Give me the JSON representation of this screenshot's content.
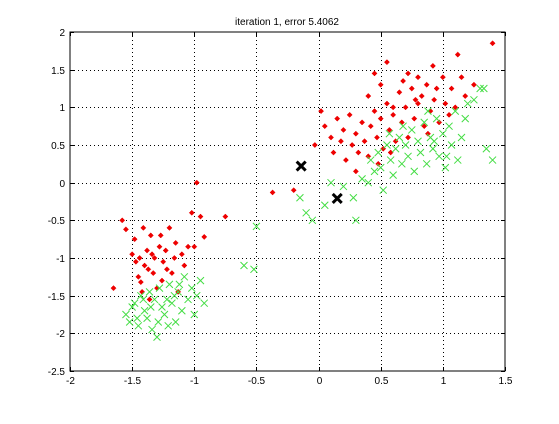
{
  "chart_data": {
    "type": "scatter",
    "title": "iteration 1, error 5.4062",
    "xlabel": "",
    "ylabel": "",
    "xlim": [
      -2,
      1.5
    ],
    "ylim": [
      -2.5,
      2
    ],
    "xticks": [
      -2,
      -1.5,
      -1,
      -0.5,
      0,
      0.5,
      1,
      1.5
    ],
    "xtick_labels": [
      "-2",
      "-1.5",
      "-1",
      "-0.5",
      "0",
      "0.5",
      "1",
      "1.5"
    ],
    "yticks": [
      -2.5,
      -2,
      -1.5,
      -1,
      -0.5,
      0,
      0.5,
      1,
      1.5,
      2
    ],
    "ytick_labels": [
      "-2.5",
      "-2",
      "-1.5",
      "-1",
      "-0.5",
      "0",
      "0.5",
      "1",
      "1.5",
      "2"
    ],
    "grid": true,
    "series": [
      {
        "marker": "diamond",
        "color": "#ee0000",
        "points": [
          [
            -1.65,
            -1.4
          ],
          [
            -1.58,
            -0.5
          ],
          [
            -1.55,
            -0.62
          ],
          [
            -1.5,
            -0.95
          ],
          [
            -1.47,
            -1.05
          ],
          [
            -1.45,
            -1.25
          ],
          [
            -1.43,
            -1.32
          ],
          [
            -1.4,
            -1.1
          ],
          [
            -1.38,
            -0.9
          ],
          [
            -1.36,
            -1.55
          ],
          [
            -1.35,
            -0.7
          ],
          [
            -1.33,
            -1.2
          ],
          [
            -1.32,
            -1.0
          ],
          [
            -1.3,
            -1.4
          ],
          [
            -1.28,
            -0.85
          ],
          [
            -1.26,
            -1.3
          ],
          [
            -1.25,
            -1.05
          ],
          [
            -1.22,
            -1.15
          ],
          [
            -1.2,
            -0.6
          ],
          [
            -1.18,
            -1.2
          ],
          [
            -1.15,
            -0.8
          ],
          [
            -1.13,
            -1.45
          ],
          [
            -1.1,
            -0.95
          ],
          [
            -1.08,
            -1.1
          ],
          [
            -1.05,
            -0.85
          ],
          [
            -1.02,
            -0.4
          ],
          [
            -1.0,
            -0.85
          ],
          [
            -0.98,
            0.0
          ],
          [
            -0.95,
            -0.45
          ],
          [
            -0.92,
            -0.72
          ],
          [
            -0.75,
            -0.45
          ],
          [
            -1.42,
            -1.45
          ],
          [
            -1.37,
            -1.15
          ],
          [
            -1.48,
            -0.75
          ],
          [
            -1.41,
            -0.6
          ],
          [
            -1.34,
            -0.95
          ],
          [
            -1.27,
            -0.7
          ],
          [
            -1.23,
            -0.9
          ],
          [
            -1.16,
            -1.0
          ],
          [
            -1.44,
            -1.0
          ],
          [
            -0.37,
            -0.13
          ],
          [
            -0.2,
            -0.1
          ],
          [
            -0.03,
            0.5
          ],
          [
            0.02,
            0.95
          ],
          [
            0.05,
            0.75
          ],
          [
            0.1,
            0.6
          ],
          [
            0.12,
            0.4
          ],
          [
            0.15,
            0.85
          ],
          [
            0.18,
            0.55
          ],
          [
            0.2,
            0.7
          ],
          [
            0.22,
            0.3
          ],
          [
            0.25,
            0.9
          ],
          [
            0.27,
            0.5
          ],
          [
            0.3,
            0.15
          ],
          [
            0.3,
            0.65
          ],
          [
            0.32,
            0.4
          ],
          [
            0.35,
            0.8
          ],
          [
            0.37,
            0.55
          ],
          [
            0.4,
            1.15
          ],
          [
            0.4,
            0.35
          ],
          [
            0.42,
            0.75
          ],
          [
            0.45,
            1.45
          ],
          [
            0.45,
            0.95
          ],
          [
            0.47,
            0.6
          ],
          [
            0.5,
            1.3
          ],
          [
            0.5,
            0.85
          ],
          [
            0.52,
            0.45
          ],
          [
            0.55,
            1.6
          ],
          [
            0.55,
            1.05
          ],
          [
            0.57,
            0.7
          ],
          [
            0.6,
            0.9
          ],
          [
            0.62,
            0.55
          ],
          [
            0.65,
            1.2
          ],
          [
            0.67,
            0.8
          ],
          [
            0.7,
            1.0
          ],
          [
            0.72,
            1.45
          ],
          [
            0.72,
            0.6
          ],
          [
            0.75,
            1.25
          ],
          [
            0.77,
            0.85
          ],
          [
            0.8,
            1.4
          ],
          [
            0.8,
            1.05
          ],
          [
            0.83,
            1.15
          ],
          [
            0.85,
            0.75
          ],
          [
            0.87,
            1.3
          ],
          [
            0.9,
            0.95
          ],
          [
            0.92,
            1.55
          ],
          [
            0.93,
            1.1
          ],
          [
            0.95,
            1.25
          ],
          [
            0.97,
            0.8
          ],
          [
            1.0,
            1.4
          ],
          [
            1.02,
            1.05
          ],
          [
            1.05,
            0.9
          ],
          [
            1.07,
            1.25
          ],
          [
            1.1,
            1.0
          ],
          [
            1.12,
            1.7
          ],
          [
            1.15,
            1.4
          ],
          [
            1.18,
            1.15
          ],
          [
            1.25,
            1.3
          ],
          [
            1.4,
            1.85
          ],
          [
            0.6,
            1.0
          ],
          [
            0.68,
            1.35
          ],
          [
            0.78,
            1.1
          ],
          [
            0.88,
            0.65
          ],
          [
            0.48,
            0.25
          ],
          [
            0.58,
            0.4
          ]
        ]
      },
      {
        "marker": "x",
        "color": "#44dd44",
        "points": [
          [
            -1.55,
            -1.75
          ],
          [
            -1.52,
            -1.85
          ],
          [
            -1.5,
            -1.65
          ],
          [
            -1.48,
            -1.6
          ],
          [
            -1.45,
            -1.9
          ],
          [
            -1.43,
            -1.5
          ],
          [
            -1.4,
            -1.7
          ],
          [
            -1.38,
            -1.8
          ],
          [
            -1.36,
            -1.45
          ],
          [
            -1.34,
            -1.95
          ],
          [
            -1.32,
            -1.55
          ],
          [
            -1.3,
            -2.05
          ],
          [
            -1.28,
            -1.4
          ],
          [
            -1.26,
            -1.65
          ],
          [
            -1.24,
            -1.75
          ],
          [
            -1.22,
            -1.55
          ],
          [
            -1.2,
            -1.35
          ],
          [
            -1.18,
            -1.6
          ],
          [
            -1.15,
            -1.85
          ],
          [
            -1.13,
            -1.45
          ],
          [
            -1.1,
            -1.7
          ],
          [
            -1.08,
            -1.25
          ],
          [
            -1.05,
            -1.55
          ],
          [
            -1.02,
            -1.4
          ],
          [
            -1.0,
            -1.75
          ],
          [
            -0.98,
            -1.5
          ],
          [
            -0.95,
            -1.3
          ],
          [
            -0.92,
            -1.6
          ],
          [
            -1.46,
            -1.8
          ],
          [
            -1.41,
            -1.55
          ],
          [
            -1.35,
            -1.65
          ],
          [
            -1.29,
            -1.85
          ],
          [
            -1.21,
            -1.9
          ],
          [
            -1.16,
            -1.5
          ],
          [
            -1.12,
            -1.35
          ],
          [
            -0.6,
            -1.1
          ],
          [
            -0.52,
            -1.15
          ],
          [
            -0.5,
            -0.58
          ],
          [
            -0.15,
            -0.2
          ],
          [
            -0.1,
            -0.4
          ],
          [
            -0.05,
            -0.5
          ],
          [
            0.05,
            -0.3
          ],
          [
            0.1,
            0.0
          ],
          [
            0.2,
            -0.05
          ],
          [
            0.28,
            -0.2
          ],
          [
            0.3,
            -0.5
          ],
          [
            0.35,
            0.05
          ],
          [
            0.4,
            0.0
          ],
          [
            0.42,
            0.3
          ],
          [
            0.45,
            0.15
          ],
          [
            0.48,
            0.4
          ],
          [
            0.5,
            0.2
          ],
          [
            0.52,
            -0.1
          ],
          [
            0.55,
            0.5
          ],
          [
            0.58,
            0.3
          ],
          [
            0.6,
            0.1
          ],
          [
            0.62,
            0.45
          ],
          [
            0.65,
            0.6
          ],
          [
            0.67,
            0.25
          ],
          [
            0.7,
            0.5
          ],
          [
            0.72,
            0.35
          ],
          [
            0.75,
            0.7
          ],
          [
            0.77,
            0.15
          ],
          [
            0.8,
            0.55
          ],
          [
            0.82,
            0.4
          ],
          [
            0.85,
            0.8
          ],
          [
            0.87,
            0.25
          ],
          [
            0.9,
            0.6
          ],
          [
            0.92,
            0.45
          ],
          [
            0.95,
            0.85
          ],
          [
            0.97,
            0.35
          ],
          [
            1.0,
            0.65
          ],
          [
            1.02,
            0.2
          ],
          [
            1.05,
            0.75
          ],
          [
            1.07,
            0.5
          ],
          [
            1.1,
            0.95
          ],
          [
            1.12,
            0.3
          ],
          [
            1.15,
            0.6
          ],
          [
            1.18,
            0.85
          ],
          [
            1.2,
            1.05
          ],
          [
            1.25,
            1.1
          ],
          [
            1.3,
            1.25
          ],
          [
            1.35,
            0.45
          ],
          [
            1.4,
            0.3
          ],
          [
            1.33,
            1.25
          ],
          [
            0.88,
            0.95
          ],
          [
            0.93,
            0.55
          ],
          [
            1.03,
            0.35
          ],
          [
            0.68,
            0.75
          ],
          [
            0.57,
            0.65
          ]
        ]
      },
      {
        "marker": "big-x",
        "color": "#000000",
        "points": [
          [
            -0.14,
            0.22
          ],
          [
            0.15,
            -0.21
          ]
        ]
      }
    ]
  }
}
